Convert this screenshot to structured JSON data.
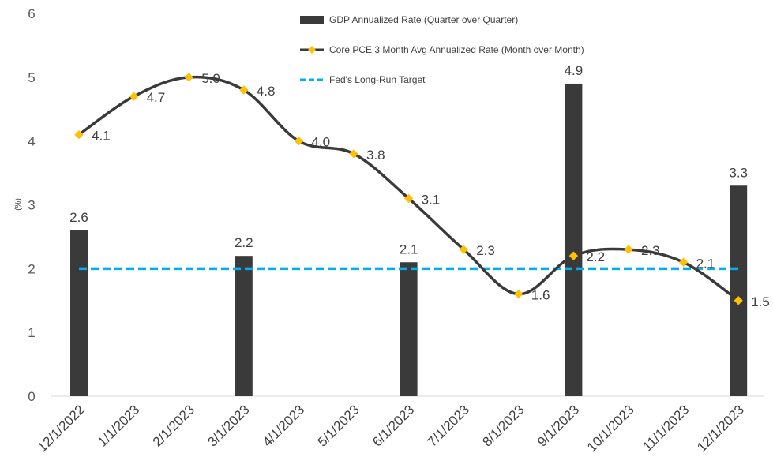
{
  "chart_data": {
    "type": "bar",
    "ylabel": "(%)",
    "ylim": [
      0,
      6
    ],
    "yticks": [
      "0",
      "1",
      "2",
      "3",
      "4",
      "5",
      "6"
    ],
    "grid": false,
    "legend_position": "top",
    "categories": [
      "12/1/2022",
      "1/1/2023",
      "2/1/2023",
      "3/1/2023",
      "4/1/2023",
      "5/1/2023",
      "6/1/2023",
      "7/1/2023",
      "8/1/2023",
      "9/1/2023",
      "10/1/2023",
      "11/1/2023",
      "12/1/2023"
    ],
    "series": [
      {
        "name": "GDP Annualized Rate (Quarter over Quarter)",
        "type": "bar",
        "color": "#3a3a3a",
        "values": [
          2.6,
          null,
          null,
          2.2,
          null,
          null,
          2.1,
          null,
          null,
          4.9,
          null,
          null,
          3.3
        ]
      },
      {
        "name": "Core PCE 3 Month Avg Annualized Rate (Month over Month)",
        "type": "line",
        "color": "#3a3a3a",
        "marker_color": "#ffc000",
        "values": [
          4.1,
          4.7,
          5.0,
          4.8,
          4.0,
          3.8,
          3.1,
          2.3,
          1.6,
          2.2,
          2.3,
          2.1,
          1.5
        ]
      },
      {
        "name": "Fed's Long-Run Target",
        "type": "line",
        "style": "dashed",
        "color": "#00b0f0",
        "values": [
          2,
          2,
          2,
          2,
          2,
          2,
          2,
          2,
          2,
          2,
          2,
          2,
          2
        ]
      }
    ]
  }
}
